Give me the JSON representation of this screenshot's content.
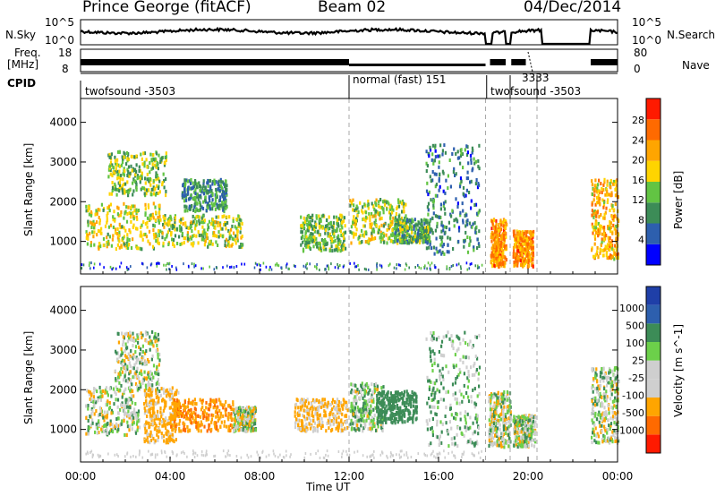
{
  "header": {
    "station": "Prince George (fitACF)",
    "beam": "Beam 02",
    "date": "04/Dec/2014"
  },
  "top_panels": {
    "nsky_label": "N.Sky",
    "nsky_ticks": [
      "10^5",
      "10^0"
    ],
    "nsearch_label": "N.Search",
    "nsearch_ticks": [
      "10^5",
      "10^0"
    ],
    "freq_label_1": "Freq.",
    "freq_label_2": "[MHz]",
    "freq_ticks": [
      "18",
      "8"
    ],
    "nave_label": "Nave",
    "nave_ticks": [
      "80",
      "0"
    ],
    "cpid_label": "CPID",
    "cpid_segments": [
      {
        "label": "twofsound -3503",
        "start": 0.0,
        "end": 12.0
      },
      {
        "label": "normal (fast) 151",
        "start": 12.0,
        "end": 18.2
      },
      {
        "label": "twofsound -3503",
        "start": 18.2,
        "end": 21.0
      },
      {
        "label": "3333",
        "start": 19.1,
        "end": 20.6
      }
    ]
  },
  "chart_data": [
    {
      "type": "heatmap",
      "title": "",
      "ylabel": "Slant Range [km]",
      "xlabel": "",
      "colorbar_label": "Power [dB]",
      "colorbar_ticks": [
        "28",
        "24",
        "20",
        "16",
        "12",
        "8",
        "4"
      ],
      "colors": [
        "#0000ff",
        "#2d5fae",
        "#3c8c57",
        "#62c443",
        "#ffd400",
        "#ffa500",
        "#ff6a00",
        "#ff1a00"
      ],
      "xlim": [
        0,
        24
      ],
      "ylim": [
        180,
        4600
      ],
      "yticks": [
        1000,
        2000,
        3000,
        4000
      ],
      "grid": false,
      "vertical_markers_hours": [
        12.0,
        18.1,
        19.2,
        20.4
      ],
      "blobs": [
        {
          "t": [
            0.2,
            3.6
          ],
          "r": [
            850,
            2000
          ],
          "v": 17
        },
        {
          "t": [
            1.2,
            3.8
          ],
          "r": [
            2200,
            3300
          ],
          "v": 14
        },
        {
          "t": [
            3.6,
            7.2
          ],
          "r": [
            900,
            1700
          ],
          "v": 15
        },
        {
          "t": [
            4.5,
            6.5
          ],
          "r": [
            1800,
            2600
          ],
          "v": 11
        },
        {
          "t": [
            9.8,
            11.8
          ],
          "r": [
            800,
            1700
          ],
          "v": 14
        },
        {
          "t": [
            12.0,
            14.5
          ],
          "r": [
            1000,
            2100
          ],
          "v": 16
        },
        {
          "t": [
            14.0,
            15.6
          ],
          "r": [
            1000,
            1600
          ],
          "v": 12
        },
        {
          "t": [
            15.4,
            17.8
          ],
          "r": [
            700,
            3500
          ],
          "v": 10
        },
        {
          "t": [
            18.3,
            19.0
          ],
          "r": [
            400,
            1600
          ],
          "v": 22
        },
        {
          "t": [
            19.3,
            20.2
          ],
          "r": [
            400,
            1300
          ],
          "v": 22
        },
        {
          "t": [
            22.8,
            24.0
          ],
          "r": [
            600,
            2600
          ],
          "v": 20
        }
      ]
    },
    {
      "type": "heatmap",
      "title": "",
      "ylabel": "Slant Range [km]",
      "xlabel": "Time UT",
      "colorbar_label": "Velocity [m s^-1]",
      "colorbar_ticks": [
        "1000",
        "500",
        "100",
        "25",
        "-25",
        "-100",
        "-500",
        "-1000"
      ],
      "colors": [
        "#ff1a00",
        "#ff6a00",
        "#ffa500",
        "#cfcfcf",
        "#cfcfcf",
        "#6cd04a",
        "#3c8c57",
        "#2d5fae",
        "#1f3fa8"
      ],
      "xlim": [
        0,
        24
      ],
      "ylim": [
        180,
        4600
      ],
      "yticks": [
        1000,
        2000,
        3000,
        4000
      ],
      "xticks": [
        "00:00",
        "04:00",
        "08:00",
        "12:00",
        "16:00",
        "20:00",
        "00:00"
      ],
      "grid": false,
      "vertical_markers_hours": [
        12.0,
        18.1,
        19.2,
        20.4
      ],
      "blobs": [
        {
          "t": [
            0.2,
            2.6
          ],
          "r": [
            900,
            2100
          ],
          "v": 0
        },
        {
          "t": [
            1.5,
            3.5
          ],
          "r": [
            2000,
            3500
          ],
          "v": 0
        },
        {
          "t": [
            2.8,
            4.4
          ],
          "r": [
            700,
            2100
          ],
          "v": -180
        },
        {
          "t": [
            4.0,
            6.8
          ],
          "r": [
            1000,
            1800
          ],
          "v": -450
        },
        {
          "t": [
            6.8,
            7.8
          ],
          "r": [
            1000,
            1600
          ],
          "v": 0
        },
        {
          "t": [
            9.5,
            11.9
          ],
          "r": [
            1000,
            1800
          ],
          "v": -150
        },
        {
          "t": [
            12.0,
            13.5
          ],
          "r": [
            1000,
            2200
          ],
          "v": 40
        },
        {
          "t": [
            13.2,
            15.0
          ],
          "r": [
            1200,
            2000
          ],
          "v": 300
        },
        {
          "t": [
            15.4,
            17.8
          ],
          "r": [
            600,
            3500
          ],
          "v": 80
        },
        {
          "t": [
            18.2,
            19.2
          ],
          "r": [
            600,
            2000
          ],
          "v": 0
        },
        {
          "t": [
            19.3,
            20.3
          ],
          "r": [
            600,
            1400
          ],
          "v": 0
        },
        {
          "t": [
            22.8,
            24.0
          ],
          "r": [
            700,
            2600
          ],
          "v": 0
        }
      ]
    }
  ],
  "x_axis": {
    "label": "Time UT",
    "ticks": [
      "00:00",
      "04:00",
      "08:00",
      "12:00",
      "16:00",
      "20:00",
      "00:00"
    ]
  }
}
